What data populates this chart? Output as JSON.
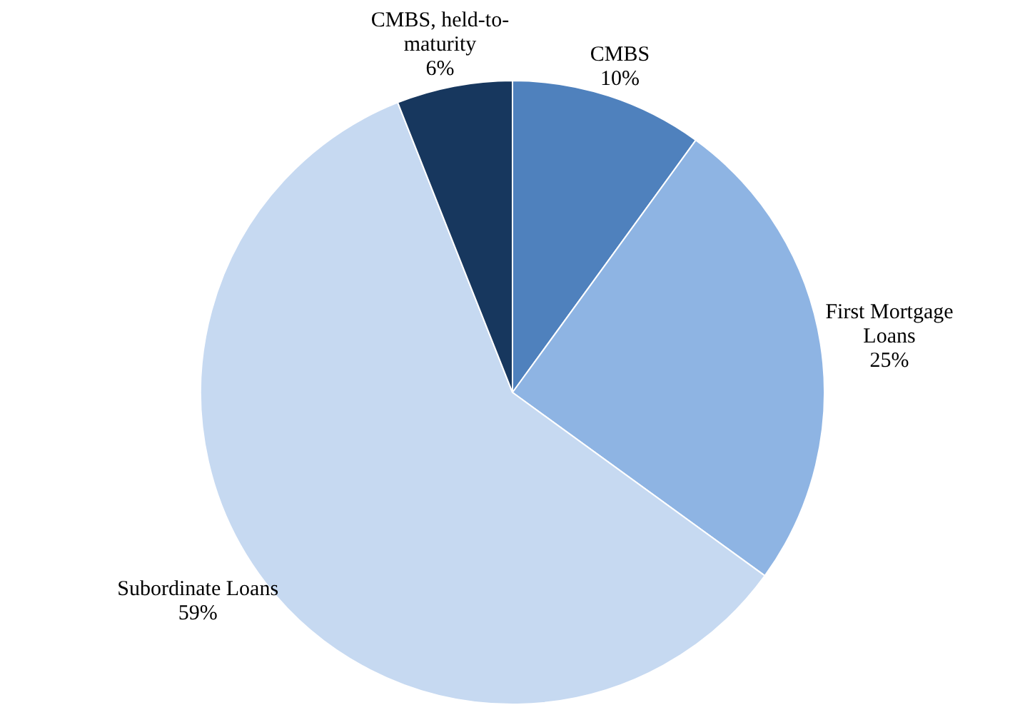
{
  "chart_data": {
    "type": "pie",
    "categories": [
      "CMBS",
      "First Mortgage Loans",
      "Subordinate Loans",
      "CMBS, held-to-maturity"
    ],
    "values": [
      10,
      25,
      59,
      6
    ],
    "colors": [
      "#4f81bd",
      "#8eb4e3",
      "#c6d9f1",
      "#17375e"
    ],
    "value_labels": [
      "10%",
      "25%",
      "59%",
      "6%"
    ],
    "legend": false
  }
}
